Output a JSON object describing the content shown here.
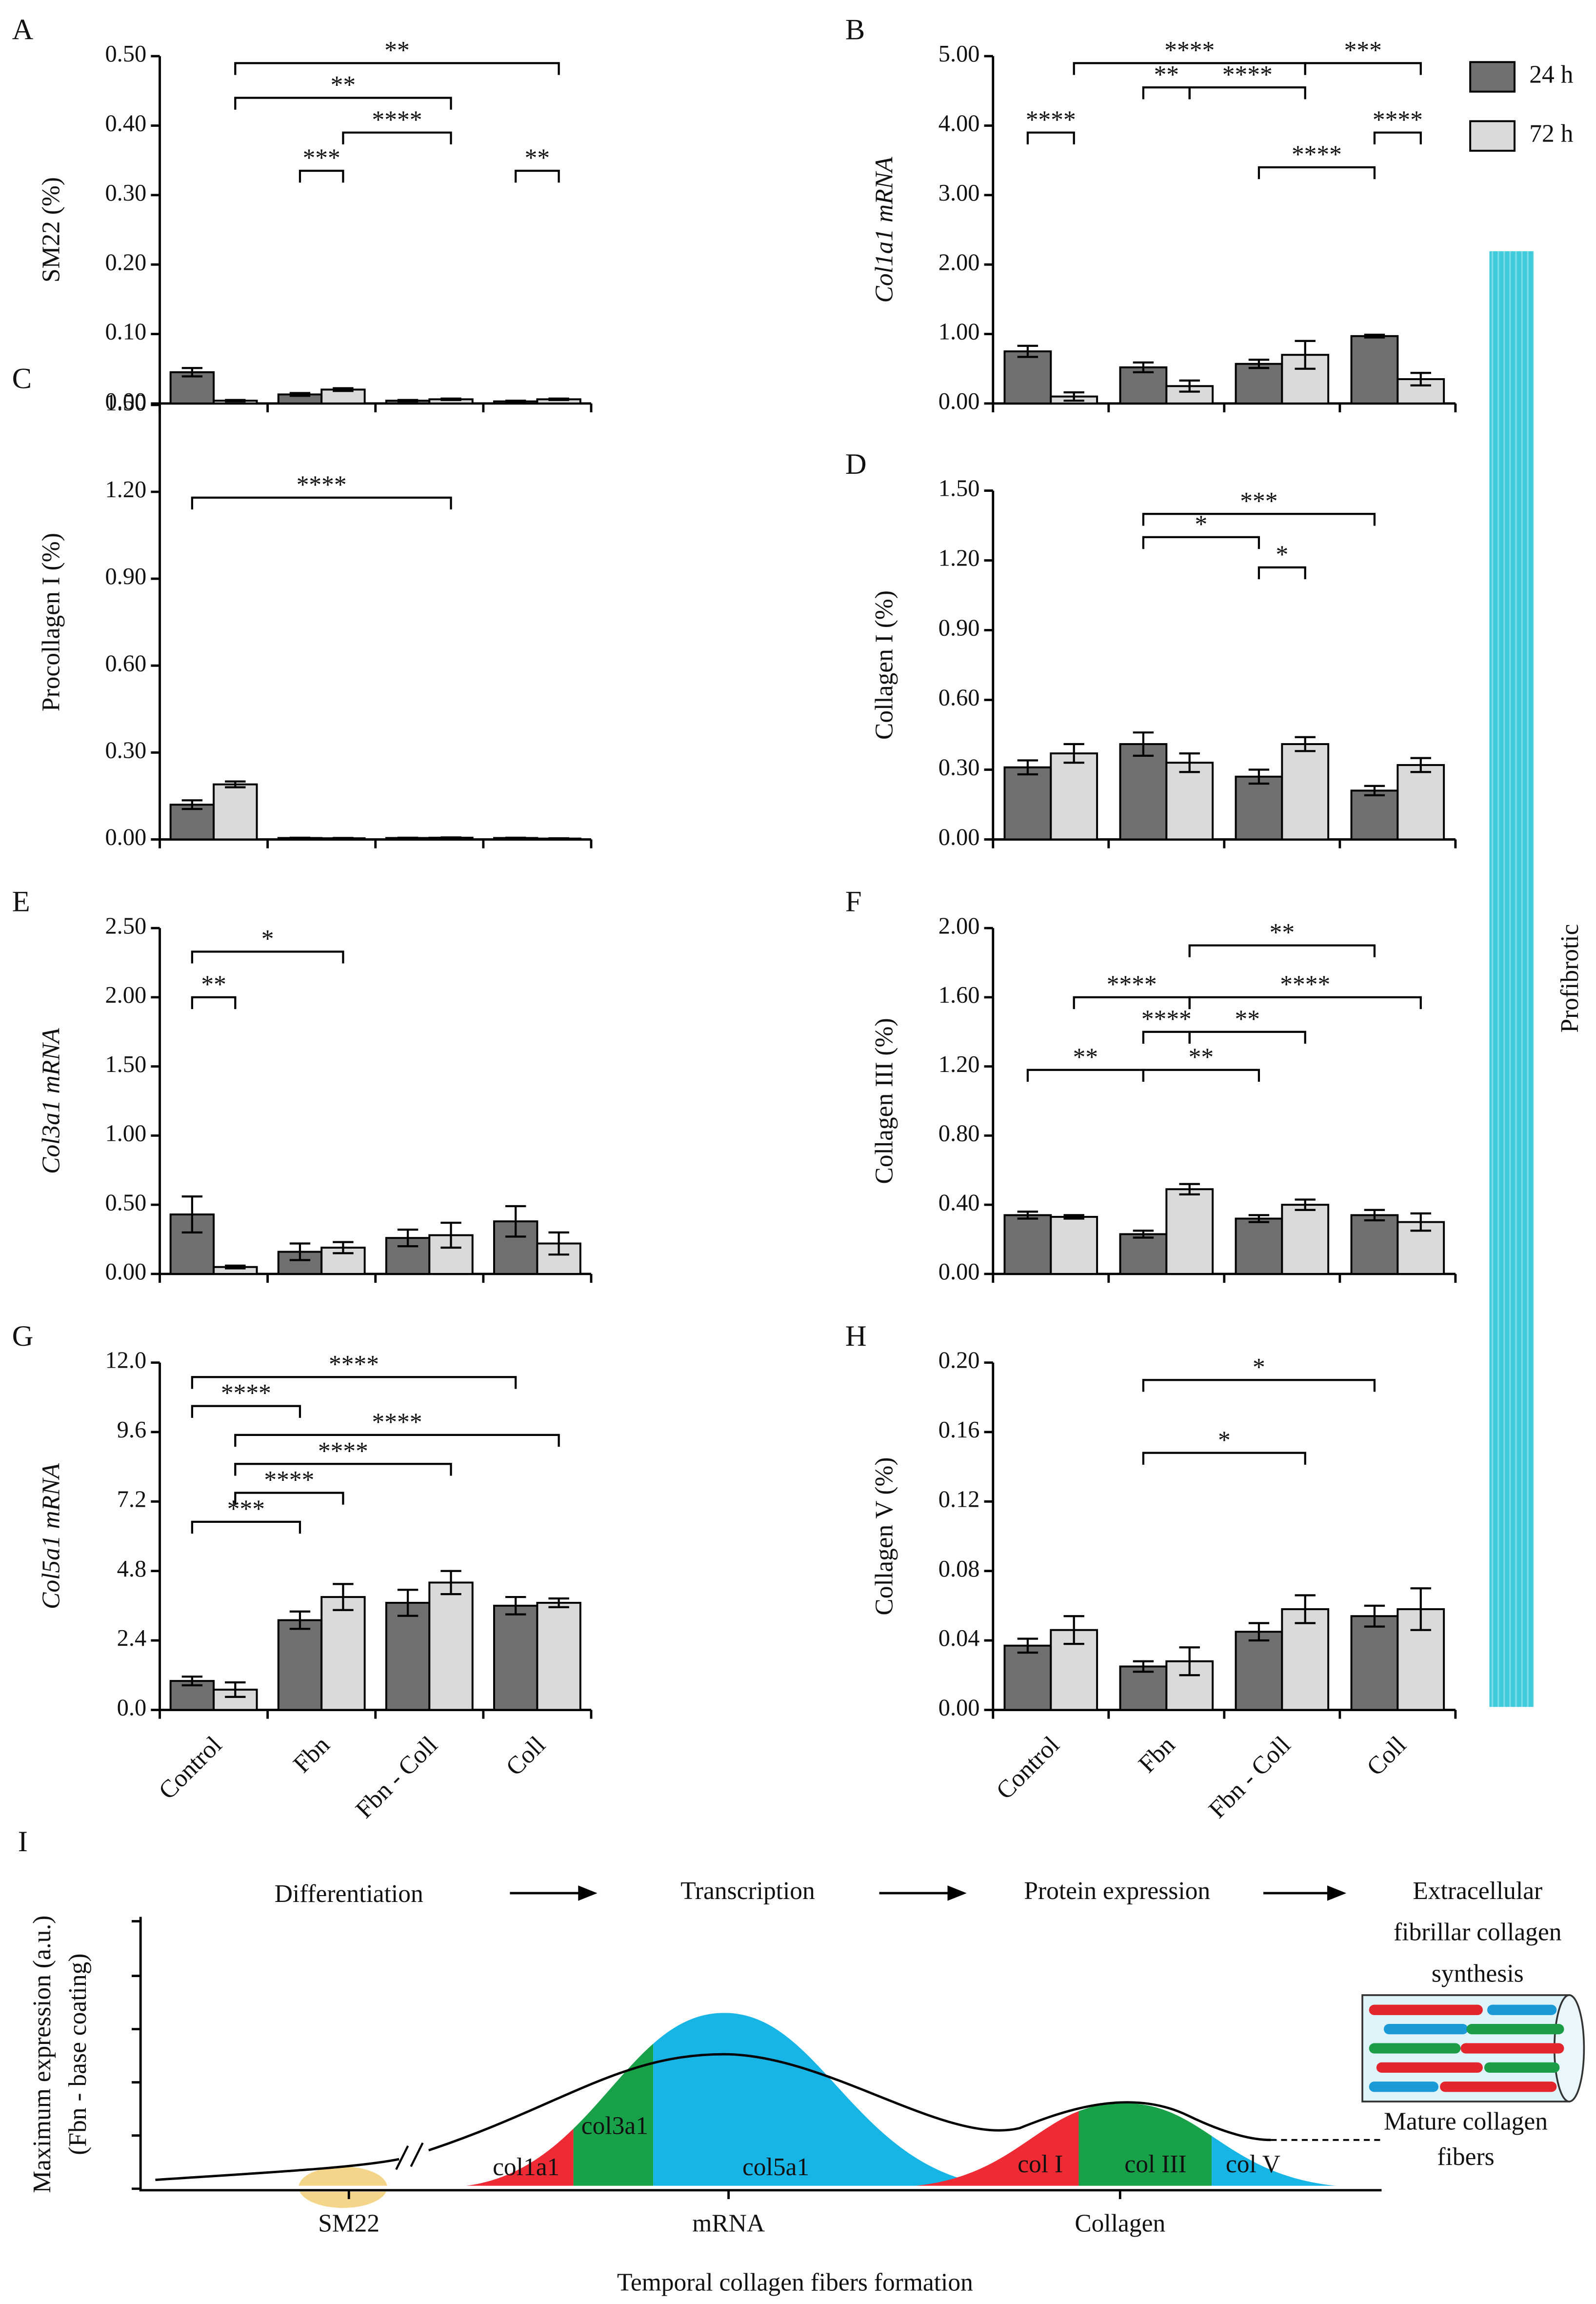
{
  "chart_data": [
    {
      "type": "bar",
      "label": "A",
      "ylabel": "SM22 (%)",
      "ylim": [
        0,
        0.5
      ],
      "yticks": [
        {
          "value": 0,
          "label": "0.00"
        },
        {
          "value": 0.1,
          "label": "0.10"
        },
        {
          "value": 0.2,
          "label": "0.20"
        },
        {
          "value": 0.3,
          "label": "0.30"
        },
        {
          "value": 0.4,
          "label": "0.40"
        },
        {
          "value": 0.5,
          "label": "0.50"
        }
      ],
      "series": [
        {
          "color": "#707070",
          "values": [
            0.045,
            0.013,
            0.004,
            0.003
          ],
          "errors": [
            0.006,
            0.002,
            0.001,
            0.001
          ]
        },
        {
          "color": "#dadada",
          "values": [
            0.004,
            0.02,
            0.006,
            0.006
          ],
          "errors": [
            0.001,
            0.002,
            0.001,
            0.001
          ]
        }
      ],
      "annotations": [
        {
          "label": "**",
          "from": 1,
          "to": 7,
          "y": 0.49
        },
        {
          "label": "**",
          "from": 1,
          "to": 5,
          "y": 0.44
        },
        {
          "label": "****",
          "from": 3,
          "to": 5,
          "y": 0.39
        },
        {
          "label": "***",
          "from": 2,
          "to": 3,
          "y": 0.335
        },
        {
          "label": "**",
          "from": 6,
          "to": 7,
          "y": 0.335
        }
      ]
    },
    {
      "type": "bar",
      "label": "B",
      "ylabel": "Col1a1 mRNA",
      "ylim": [
        0,
        5
      ],
      "yticks": [
        {
          "value": 0,
          "label": "0.00"
        },
        {
          "value": 1,
          "label": "1.00"
        },
        {
          "value": 2,
          "label": "2.00"
        },
        {
          "value": 3,
          "label": "3.00"
        },
        {
          "value": 4,
          "label": "4.00"
        },
        {
          "value": 5,
          "label": "5.00"
        }
      ],
      "series": [
        {
          "name": "24 h",
          "color": "#707070",
          "values": [
            0.75,
            0.52,
            0.57,
            0.97
          ],
          "errors": [
            0.08,
            0.07,
            0.06,
            0.02
          ]
        },
        {
          "name": "72 h",
          "color": "#dadada",
          "values": [
            0.1,
            0.25,
            0.7,
            0.35
          ],
          "errors": [
            0.06,
            0.08,
            0.2,
            0.09
          ]
        }
      ],
      "annotations": [
        {
          "label": "****",
          "from": 1,
          "to": 5,
          "y": 4.9
        },
        {
          "label": "***",
          "from": 5,
          "to": 7,
          "y": 4.9
        },
        {
          "label": "**",
          "from": 2,
          "to": 3,
          "y": 4.55
        },
        {
          "label": "****",
          "from": 3,
          "to": 5,
          "y": 4.55
        },
        {
          "label": "****",
          "from": 0,
          "to": 1,
          "y": 3.9
        },
        {
          "label": "****",
          "from": 6,
          "to": 7,
          "y": 3.9
        },
        {
          "label": "****",
          "from": 4,
          "to": 6,
          "y": 3.4
        }
      ]
    },
    {
      "type": "bar",
      "label": "C",
      "ylabel": "Procollagen I (%)",
      "ylim": [
        0,
        1.5
      ],
      "yticks": [
        {
          "value": 0,
          "label": "0.00"
        },
        {
          "value": 0.3,
          "label": "0.30"
        },
        {
          "value": 0.6,
          "label": "0.60"
        },
        {
          "value": 0.9,
          "label": "0.90"
        },
        {
          "value": 1.2,
          "label": "1.20"
        },
        {
          "value": 1.5,
          "label": "1.50"
        }
      ],
      "series": [
        {
          "color": "#707070",
          "values": [
            0.12,
            0.005,
            0.005,
            0.005
          ],
          "errors": [
            0.015,
            0.001,
            0.001,
            0.001
          ]
        },
        {
          "color": "#dadada",
          "values": [
            0.19,
            0.004,
            0.006,
            0.003
          ],
          "errors": [
            0.01,
            0.001,
            0.001,
            0.001
          ]
        }
      ],
      "annotations": [
        {
          "label": "****",
          "from": 0,
          "to": 5,
          "y": 1.18
        }
      ]
    },
    {
      "type": "bar",
      "label": "D",
      "ylabel": "Collagen I (%)",
      "ylim": [
        0,
        1.5
      ],
      "yticks": [
        {
          "value": 0,
          "label": "0.00"
        },
        {
          "value": 0.3,
          "label": "0.30"
        },
        {
          "value": 0.6,
          "label": "0.60"
        },
        {
          "value": 0.9,
          "label": "0.90"
        },
        {
          "value": 1.2,
          "label": "1.20"
        },
        {
          "value": 1.5,
          "label": "1.50"
        }
      ],
      "series": [
        {
          "color": "#707070",
          "values": [
            0.31,
            0.41,
            0.27,
            0.21
          ],
          "errors": [
            0.03,
            0.05,
            0.03,
            0.02
          ]
        },
        {
          "color": "#dadada",
          "values": [
            0.37,
            0.33,
            0.41,
            0.32
          ],
          "errors": [
            0.04,
            0.04,
            0.03,
            0.03
          ]
        }
      ],
      "annotations": [
        {
          "label": "***",
          "from": 2,
          "to": 6,
          "y": 1.4
        },
        {
          "label": "*",
          "from": 2,
          "to": 4,
          "y": 1.3
        },
        {
          "label": "*",
          "from": 4,
          "to": 5,
          "y": 1.17
        }
      ]
    },
    {
      "type": "bar",
      "label": "E",
      "ylabel": "Col3a1 mRNA",
      "ylim": [
        0,
        2.5
      ],
      "yticks": [
        {
          "value": 0,
          "label": "0.00"
        },
        {
          "value": 0.5,
          "label": "0.50"
        },
        {
          "value": 1,
          "label": "1.00"
        },
        {
          "value": 1.5,
          "label": "1.50"
        },
        {
          "value": 2,
          "label": "2.00"
        },
        {
          "value": 2.5,
          "label": "2.50"
        }
      ],
      "series": [
        {
          "color": "#707070",
          "values": [
            0.43,
            0.16,
            0.26,
            0.38
          ],
          "errors": [
            0.13,
            0.06,
            0.06,
            0.11
          ]
        },
        {
          "color": "#dadada",
          "values": [
            0.05,
            0.19,
            0.28,
            0.22
          ],
          "errors": [
            0.01,
            0.04,
            0.09,
            0.08
          ]
        }
      ],
      "annotations": [
        {
          "label": "*",
          "from": 0,
          "to": 3,
          "y": 2.33
        },
        {
          "label": "**",
          "from": 0,
          "to": 1,
          "y": 2.0
        }
      ]
    },
    {
      "type": "bar",
      "label": "F",
      "ylabel": "Collagen III (%)",
      "ylim": [
        0,
        2
      ],
      "yticks": [
        {
          "value": 0,
          "label": "0.00"
        },
        {
          "value": 0.4,
          "label": "0.40"
        },
        {
          "value": 0.8,
          "label": "0.80"
        },
        {
          "value": 1.2,
          "label": "1.20"
        },
        {
          "value": 1.6,
          "label": "1.60"
        },
        {
          "value": 2,
          "label": "2.00"
        }
      ],
      "series": [
        {
          "color": "#707070",
          "values": [
            0.34,
            0.23,
            0.32,
            0.34
          ],
          "errors": [
            0.02,
            0.02,
            0.02,
            0.03
          ]
        },
        {
          "color": "#dadada",
          "values": [
            0.33,
            0.49,
            0.4,
            0.3
          ],
          "errors": [
            0.01,
            0.03,
            0.03,
            0.05
          ]
        }
      ],
      "annotations": [
        {
          "label": "**",
          "from": 3,
          "to": 6,
          "y": 1.9
        },
        {
          "label": "****",
          "from": 1,
          "to": 3,
          "y": 1.6
        },
        {
          "label": "****",
          "from": 3,
          "to": 7,
          "y": 1.6
        },
        {
          "label": "****",
          "from": 2,
          "to": 3,
          "y": 1.4
        },
        {
          "label": "**",
          "from": 3,
          "to": 5,
          "y": 1.4
        },
        {
          "label": "**",
          "from": 0,
          "to": 2,
          "y": 1.18
        },
        {
          "label": "**",
          "from": 2,
          "to": 4,
          "y": 1.18
        }
      ]
    },
    {
      "type": "bar",
      "label": "G",
      "ylabel": "Col5a1 mRNA",
      "ylim": [
        0,
        12
      ],
      "yticks": [
        {
          "value": 0,
          "label": "0.0"
        },
        {
          "value": 2.4,
          "label": "2.4"
        },
        {
          "value": 4.8,
          "label": "4.8"
        },
        {
          "value": 7.2,
          "label": "7.2"
        },
        {
          "value": 9.6,
          "label": "9.6"
        },
        {
          "value": 12,
          "label": "12.0"
        }
      ],
      "categories": [
        "Control",
        "Fbn",
        "Fbn - Coll",
        "Coll"
      ],
      "series": [
        {
          "color": "#707070",
          "values": [
            1.0,
            3.1,
            3.7,
            3.6
          ],
          "errors": [
            0.15,
            0.3,
            0.45,
            0.3
          ]
        },
        {
          "color": "#dadada",
          "values": [
            0.7,
            3.9,
            4.4,
            3.7
          ],
          "errors": [
            0.25,
            0.45,
            0.4,
            0.15
          ]
        }
      ],
      "annotations": [
        {
          "label": "****",
          "from": 0,
          "to": 6,
          "y": 11.5
        },
        {
          "label": "****",
          "from": 0,
          "to": 2,
          "y": 10.5
        },
        {
          "label": "****",
          "from": 1,
          "to": 7,
          "y": 9.5
        },
        {
          "label": "****",
          "from": 1,
          "to": 5,
          "y": 8.5
        },
        {
          "label": "****",
          "from": 1,
          "to": 3,
          "y": 7.5
        },
        {
          "label": "***",
          "from": 0,
          "to": 2,
          "y": 6.5
        }
      ]
    },
    {
      "type": "bar",
      "label": "H",
      "ylabel": "Collagen V (%)",
      "ylim": [
        0,
        0.2
      ],
      "yticks": [
        {
          "value": 0,
          "label": "0.00"
        },
        {
          "value": 0.04,
          "label": "0.04"
        },
        {
          "value": 0.08,
          "label": "0.08"
        },
        {
          "value": 0.12,
          "label": "0.12"
        },
        {
          "value": 0.16,
          "label": "0.16"
        },
        {
          "value": 0.2,
          "label": "0.20"
        }
      ],
      "categories": [
        "Control",
        "Fbn",
        "Fbn - Coll",
        "Coll"
      ],
      "series": [
        {
          "color": "#707070",
          "values": [
            0.037,
            0.025,
            0.045,
            0.054
          ],
          "errors": [
            0.004,
            0.003,
            0.005,
            0.006
          ]
        },
        {
          "color": "#dadada",
          "values": [
            0.046,
            0.028,
            0.058,
            0.058
          ],
          "errors": [
            0.008,
            0.008,
            0.008,
            0.012
          ]
        }
      ],
      "annotations": [
        {
          "label": "*",
          "from": 2,
          "to": 6,
          "y": 0.19
        },
        {
          "label": "*",
          "from": 2,
          "to": 5,
          "y": 0.148
        }
      ]
    }
  ],
  "side_label": "Profibrotic",
  "diagram": {
    "label": "I",
    "steps": [
      "Differentiation",
      "Transcription",
      "Protein expression"
    ],
    "final_step": [
      "Extracellular",
      "fibrillar collagen",
      "synthesis"
    ],
    "ylabel": [
      "Maximum expression (a.u.)",
      "(Fbn - base coating)"
    ],
    "regions": [
      "col1a1",
      "col3a1",
      "col5a1",
      "col I",
      "col III",
      "col V"
    ],
    "stages": [
      "SM22",
      "mRNA",
      "Collagen"
    ],
    "fiber_label": [
      "Mature collagen",
      "fibers"
    ],
    "xlabel": "Temporal collagen fibers formation"
  }
}
